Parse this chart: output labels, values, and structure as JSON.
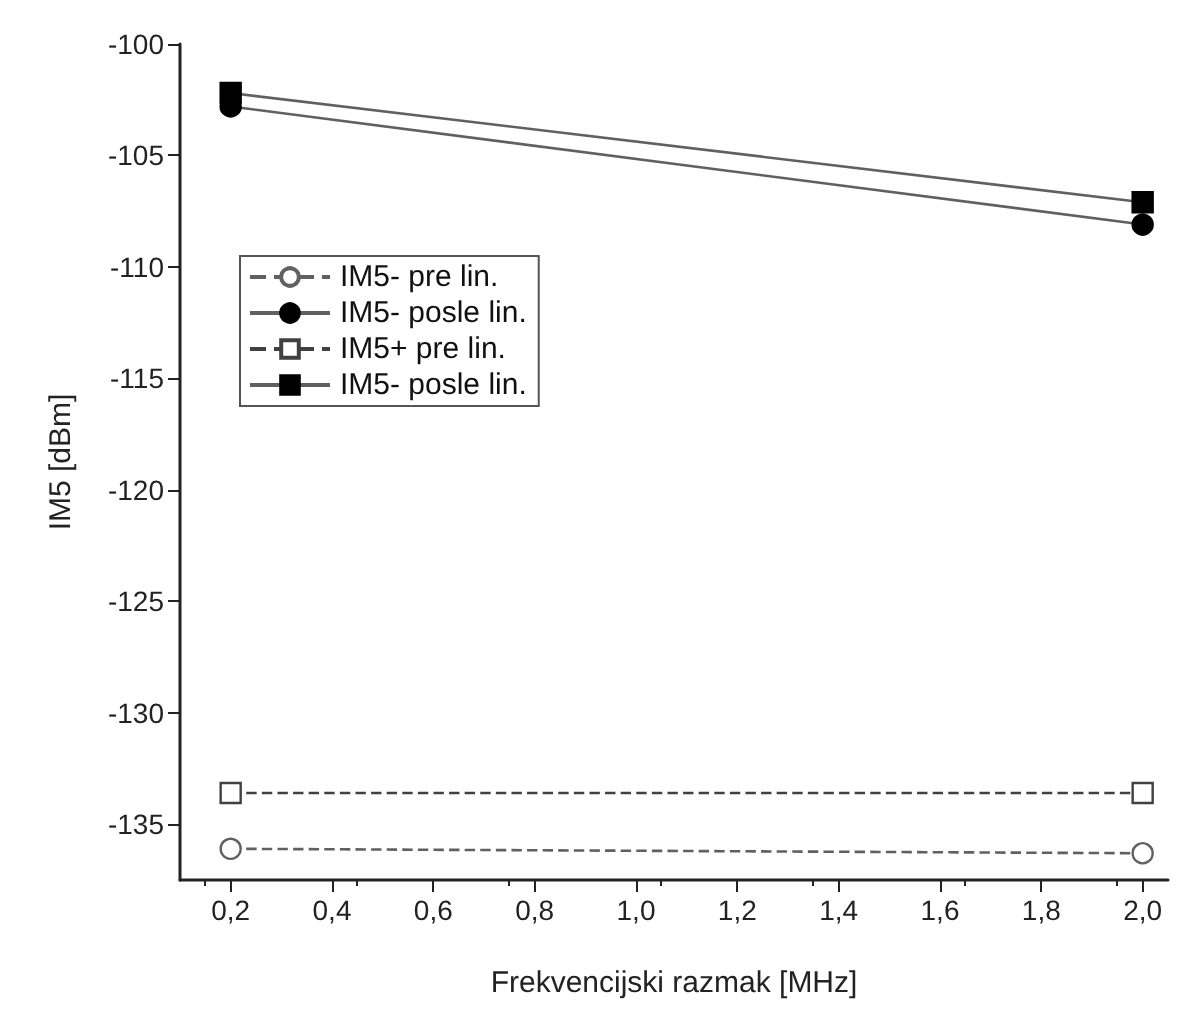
{
  "chart_data": {
    "type": "line",
    "xlabel": "Frekvencijski razmak [MHz]",
    "ylabel": "IM5 [dBm]",
    "x": [
      0.2,
      2.0
    ],
    "series": [
      {
        "name": "IM5- pre lin.",
        "color": "#606060",
        "marker": "circle",
        "line_style": "dashed",
        "values": [
          -136.1,
          -136.3
        ]
      },
      {
        "name": "IM5- posle lin.",
        "color": "#606060",
        "marker": "circle",
        "line_style": "solid",
        "values": [
          -102.8,
          -108.1
        ]
      },
      {
        "name": "IM5+ pre lin.",
        "color": "#404040",
        "marker": "square",
        "line_style": "dashed",
        "values": [
          -133.6,
          -133.6
        ]
      },
      {
        "name": "IM5- posle lin.",
        "color": "#606060",
        "marker": "square",
        "line_style": "solid",
        "values": [
          -102.2,
          -107.1
        ]
      }
    ],
    "xlim": [
      0.1,
      2.05
    ],
    "xticks": [
      {
        "value": 0.2,
        "label": "0,2"
      },
      {
        "value": 0.4,
        "label": "0,4"
      },
      {
        "value": 0.6,
        "label": "0,6"
      },
      {
        "value": 0.8,
        "label": "0,8"
      },
      {
        "value": 1.0,
        "label": "1,0"
      },
      {
        "value": 1.2,
        "label": "1,2"
      },
      {
        "value": 1.4,
        "label": "1,4"
      },
      {
        "value": 1.6,
        "label": "1,6"
      },
      {
        "value": 1.8,
        "label": "1,8"
      },
      {
        "value": 2.0,
        "label": "2,0"
      }
    ],
    "ylim": [
      -137.5,
      -100
    ],
    "yticks": [
      -135,
      -130,
      -125,
      -120,
      -115,
      -110,
      -105,
      -100
    ],
    "grid": false,
    "legend": "top left"
  }
}
